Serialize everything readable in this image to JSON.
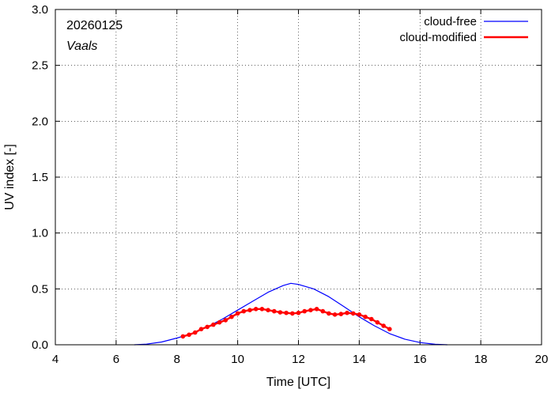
{
  "chart_data": {
    "type": "line",
    "xlabel": "Time  [UTC]",
    "ylabel": "UV index  [-]",
    "xlim": [
      4,
      20
    ],
    "ylim": [
      0.0,
      3.0
    ],
    "x_ticks": [
      "4",
      "6",
      "8",
      "10",
      "12",
      "14",
      "16",
      "18",
      "20"
    ],
    "y_ticks": [
      "0.0",
      "0.5",
      "1.0",
      "1.5",
      "2.0",
      "2.5",
      "3.0"
    ],
    "grid": true,
    "legend_position": "top-right",
    "annotations": {
      "date": "20260125",
      "location": "Vaals"
    },
    "series": [
      {
        "name": "cloud-free",
        "color": "#0000ff",
        "marker": "none",
        "points": [
          [
            6.6,
            0.0
          ],
          [
            7.0,
            0.006
          ],
          [
            7.5,
            0.025
          ],
          [
            8.0,
            0.06
          ],
          [
            8.5,
            0.1
          ],
          [
            9.0,
            0.16
          ],
          [
            9.5,
            0.23
          ],
          [
            10.0,
            0.31
          ],
          [
            10.5,
            0.39
          ],
          [
            11.0,
            0.47
          ],
          [
            11.5,
            0.53
          ],
          [
            11.75,
            0.55
          ],
          [
            12.0,
            0.54
          ],
          [
            12.5,
            0.5
          ],
          [
            13.0,
            0.43
          ],
          [
            13.5,
            0.34
          ],
          [
            14.0,
            0.25
          ],
          [
            14.5,
            0.17
          ],
          [
            15.0,
            0.1
          ],
          [
            15.5,
            0.05
          ],
          [
            16.0,
            0.02
          ],
          [
            16.5,
            0.004
          ],
          [
            16.9,
            0.0
          ]
        ]
      },
      {
        "name": "cloud-modified",
        "color": "#ff0000",
        "marker": "circle",
        "points": [
          [
            8.2,
            0.075
          ],
          [
            8.4,
            0.09
          ],
          [
            8.6,
            0.11
          ],
          [
            8.8,
            0.14
          ],
          [
            9.0,
            0.16
          ],
          [
            9.2,
            0.18
          ],
          [
            9.4,
            0.2
          ],
          [
            9.6,
            0.22
          ],
          [
            9.8,
            0.25
          ],
          [
            10.0,
            0.28
          ],
          [
            10.2,
            0.3
          ],
          [
            10.4,
            0.31
          ],
          [
            10.6,
            0.32
          ],
          [
            10.8,
            0.32
          ],
          [
            11.0,
            0.31
          ],
          [
            11.2,
            0.3
          ],
          [
            11.4,
            0.29
          ],
          [
            11.6,
            0.285
          ],
          [
            11.8,
            0.28
          ],
          [
            12.0,
            0.285
          ],
          [
            12.2,
            0.3
          ],
          [
            12.4,
            0.31
          ],
          [
            12.6,
            0.32
          ],
          [
            12.8,
            0.3
          ],
          [
            13.0,
            0.28
          ],
          [
            13.2,
            0.27
          ],
          [
            13.4,
            0.275
          ],
          [
            13.6,
            0.285
          ],
          [
            13.8,
            0.28
          ],
          [
            14.0,
            0.27
          ],
          [
            14.2,
            0.25
          ],
          [
            14.4,
            0.23
          ],
          [
            14.6,
            0.2
          ],
          [
            14.8,
            0.17
          ],
          [
            15.0,
            0.14
          ]
        ]
      }
    ]
  }
}
